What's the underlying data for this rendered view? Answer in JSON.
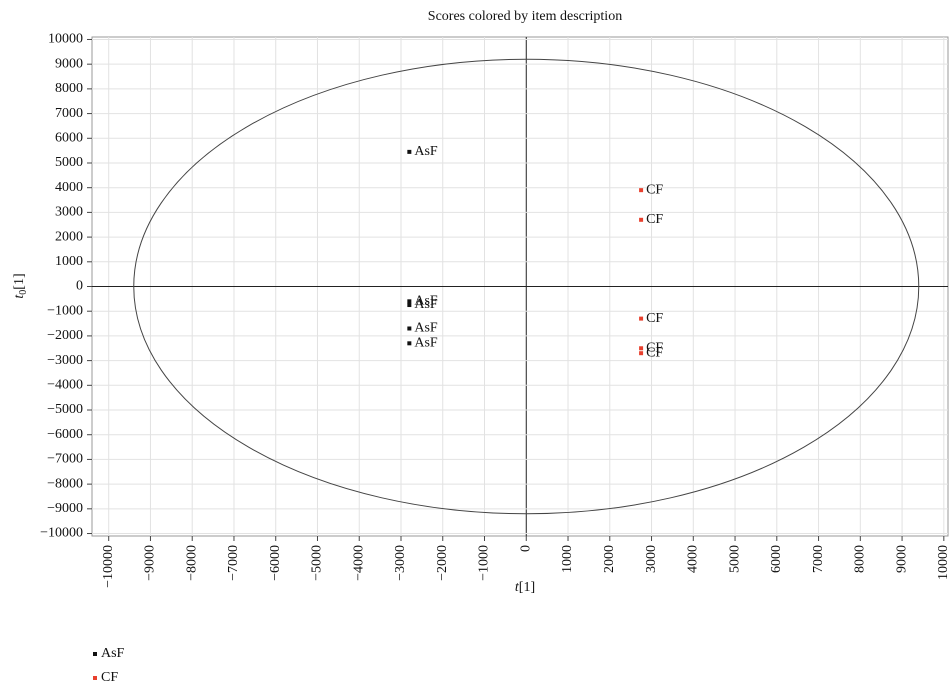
{
  "chart_data": {
    "type": "scatter",
    "title": "Scores colored by item description",
    "x_label": {
      "symbol": "t",
      "suffix": "[1]"
    },
    "y_label": {
      "symbol": "t",
      "subscript": "0",
      "suffix": "[1]"
    },
    "xlim": [
      -10400,
      10100
    ],
    "ylim": [
      -10100,
      10100
    ],
    "xticks": [
      {
        "value": -10000,
        "label": "−10000"
      },
      {
        "value": -9000,
        "label": "−9000"
      },
      {
        "value": -8000,
        "label": "−8000"
      },
      {
        "value": -7000,
        "label": "−7000"
      },
      {
        "value": -6000,
        "label": "−6000"
      },
      {
        "value": -5000,
        "label": "−5000"
      },
      {
        "value": -4000,
        "label": "−4000"
      },
      {
        "value": -3000,
        "label": "−3000"
      },
      {
        "value": -2000,
        "label": "−2000"
      },
      {
        "value": -1000,
        "label": "−1000"
      },
      0,
      1000,
      2000,
      3000,
      4000,
      5000,
      6000,
      7000,
      8000,
      9000,
      10000
    ],
    "yticks": [
      {
        "value": -10000,
        "label": "−10000"
      },
      {
        "value": -9000,
        "label": "−9000"
      },
      {
        "value": -8000,
        "label": "−8000"
      },
      {
        "value": -7000,
        "label": "−7000"
      },
      {
        "value": -6000,
        "label": "−6000"
      },
      {
        "value": -5000,
        "label": "−5000"
      },
      {
        "value": -4000,
        "label": "−4000"
      },
      {
        "value": -3000,
        "label": "−3000"
      },
      {
        "value": -2000,
        "label": "−2000"
      },
      {
        "value": -1000,
        "label": "−1000"
      },
      0,
      1000,
      2000,
      3000,
      4000,
      5000,
      6000,
      7000,
      8000,
      9000,
      10000
    ],
    "grid": true,
    "ellipse": {
      "rx": 9400,
      "ry": 9200
    },
    "series": [
      {
        "name": "AsF",
        "color": "#111111",
        "x": [
          -2800,
          -2800,
          -2800,
          -2800,
          -2800
        ],
        "values": [
          5450,
          -600,
          -750,
          -1700,
          -2300
        ]
      },
      {
        "name": "CF",
        "color": "#e8402e",
        "x": [
          2750,
          2750,
          2750,
          2750,
          2750
        ],
        "values": [
          3900,
          2700,
          -1300,
          -2500,
          -2700
        ]
      }
    ]
  }
}
